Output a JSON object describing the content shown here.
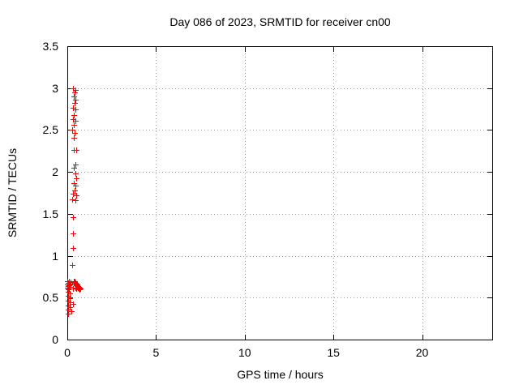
{
  "page": {
    "background": "#ffffff"
  },
  "chart_data": {
    "type": "scatter",
    "title": "Day 086 of 2023, SRMTID for receiver cn00",
    "xlabel": "GPS time / hours",
    "ylabel": "SRMTID / TECUs",
    "xlim": [
      0,
      24
    ],
    "ylim": [
      0,
      3.5
    ],
    "xticks": [
      0,
      5,
      10,
      15,
      20
    ],
    "xtick_labels": [
      "0",
      "5",
      "10",
      "15",
      "20"
    ],
    "yticks": [
      0,
      0.5,
      1,
      1.5,
      2,
      2.5,
      3,
      3.5
    ],
    "ytick_labels": [
      "0",
      "0.5",
      "1",
      "1.5",
      "2",
      "2.5",
      "3",
      "3.5"
    ],
    "grid": true,
    "grid_style": "dotted",
    "legend_position": "none",
    "marker": "plus",
    "marker_color": "#ff0000",
    "axis_color": "#000000",
    "grid_color": "#9a9a9a",
    "series": [
      {
        "name": "SRMTID",
        "points": [
          [
            0.33,
            3.0
          ],
          [
            0.47,
            2.98
          ],
          [
            0.42,
            2.95
          ],
          [
            0.38,
            2.9
          ],
          [
            0.47,
            2.86
          ],
          [
            0.42,
            2.82
          ],
          [
            0.33,
            2.77
          ],
          [
            0.47,
            2.75
          ],
          [
            0.38,
            2.68
          ],
          [
            0.33,
            2.63
          ],
          [
            0.47,
            2.61
          ],
          [
            0.38,
            2.56
          ],
          [
            0.29,
            2.5
          ],
          [
            0.42,
            2.47
          ],
          [
            0.38,
            2.41
          ],
          [
            0.36,
            2.26
          ],
          [
            0.5,
            2.26
          ],
          [
            0.47,
            2.09
          ],
          [
            0.38,
            2.05
          ],
          [
            0.47,
            1.98
          ],
          [
            0.51,
            1.92
          ],
          [
            0.38,
            1.87
          ],
          [
            0.47,
            1.84
          ],
          [
            0.42,
            1.78
          ],
          [
            0.33,
            1.74
          ],
          [
            0.51,
            1.72
          ],
          [
            0.29,
            1.67
          ],
          [
            0.47,
            1.66
          ],
          [
            0.33,
            1.46
          ],
          [
            0.33,
            1.27
          ],
          [
            0.33,
            1.09
          ],
          [
            0.29,
            0.89
          ],
          [
            0.02,
            0.7
          ],
          [
            0.09,
            0.7
          ],
          [
            0.16,
            0.69
          ],
          [
            0.05,
            0.68
          ],
          [
            0.12,
            0.67
          ],
          [
            0.02,
            0.66
          ],
          [
            0.09,
            0.65
          ],
          [
            0.16,
            0.66
          ],
          [
            0.05,
            0.64
          ],
          [
            0.12,
            0.63
          ],
          [
            0.02,
            0.62
          ],
          [
            0.09,
            0.61
          ],
          [
            0.05,
            0.6
          ],
          [
            0.36,
            0.7
          ],
          [
            0.43,
            0.7
          ],
          [
            0.4,
            0.68
          ],
          [
            0.47,
            0.68
          ],
          [
            0.52,
            0.67
          ],
          [
            0.45,
            0.66
          ],
          [
            0.57,
            0.66
          ],
          [
            0.5,
            0.65
          ],
          [
            0.55,
            0.64
          ],
          [
            0.61,
            0.64
          ],
          [
            0.66,
            0.63
          ],
          [
            0.59,
            0.62
          ],
          [
            0.64,
            0.61
          ],
          [
            0.7,
            0.62
          ],
          [
            0.52,
            0.61
          ],
          [
            0.47,
            0.62
          ],
          [
            0.75,
            0.61
          ],
          [
            0.68,
            0.6
          ],
          [
            0.3,
            0.61
          ],
          [
            0.05,
            0.57
          ],
          [
            0.14,
            0.55
          ],
          [
            0.05,
            0.52
          ],
          [
            0.14,
            0.49
          ],
          [
            0.05,
            0.46
          ],
          [
            0.14,
            0.44
          ],
          [
            0.32,
            0.43
          ],
          [
            0.05,
            0.41
          ],
          [
            0.14,
            0.39
          ],
          [
            0.05,
            0.36
          ],
          [
            0.23,
            0.34
          ],
          [
            0.05,
            0.31
          ]
        ]
      }
    ]
  }
}
